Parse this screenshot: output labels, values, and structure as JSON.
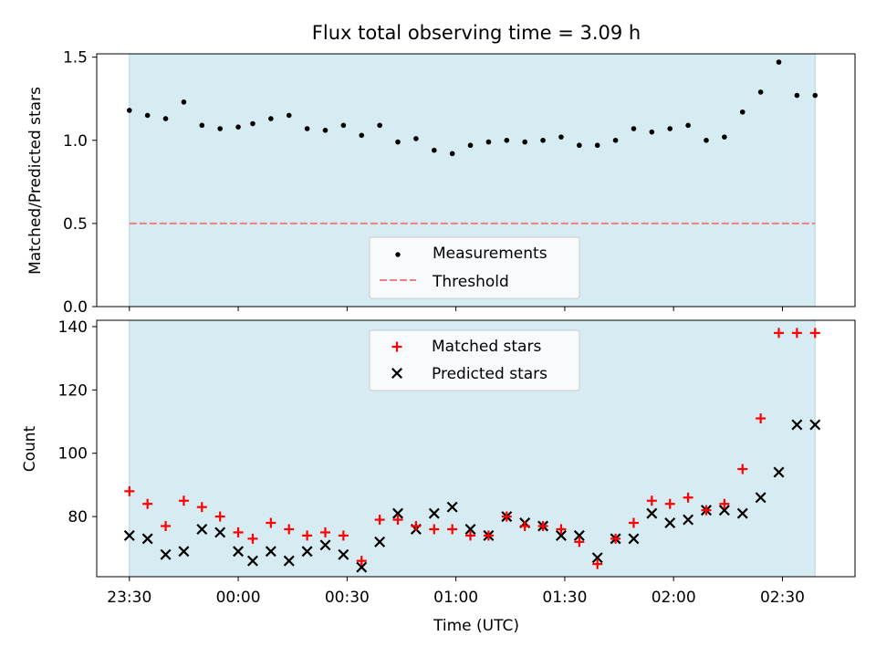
{
  "chart_data": [
    {
      "type": "scatter",
      "title": "Flux total observing time = 3.09 h",
      "xlabel": "",
      "ylabel": "Matched/Predicted stars",
      "xlim": [
        "23:21",
        "02:50"
      ],
      "ylim": [
        0,
        1.52
      ],
      "yticks": [
        0.0,
        0.5,
        1.0,
        1.5
      ],
      "ytick_labels": [
        "0.0",
        "0.5",
        "1.0",
        "1.5"
      ],
      "grid": false,
      "legend_position": "bottom-center",
      "shaded_span": [
        "23:30",
        "02:39"
      ],
      "threshold": {
        "name": "Threshold",
        "value": 0.5,
        "color": "#f07f7f",
        "style": "dashed"
      },
      "series": [
        {
          "name": "Measurements",
          "color": "#000000",
          "marker": "dot",
          "x": [
            "23:30",
            "23:35",
            "23:40",
            "23:45",
            "23:50",
            "23:55",
            "00:00",
            "00:04",
            "00:09",
            "00:14",
            "00:19",
            "00:24",
            "00:29",
            "00:34",
            "00:39",
            "00:44",
            "00:49",
            "00:54",
            "00:59",
            "01:04",
            "01:09",
            "01:14",
            "01:19",
            "01:24",
            "01:29",
            "01:34",
            "01:39",
            "01:44",
            "01:49",
            "01:54",
            "01:59",
            "02:04",
            "02:09",
            "02:14",
            "02:19",
            "02:24",
            "02:29",
            "02:34",
            "02:39"
          ],
          "y": [
            1.18,
            1.15,
            1.13,
            1.23,
            1.09,
            1.07,
            1.08,
            1.1,
            1.13,
            1.15,
            1.07,
            1.06,
            1.09,
            1.03,
            1.09,
            0.99,
            1.01,
            0.94,
            0.92,
            0.97,
            0.99,
            1.0,
            0.99,
            1.0,
            1.02,
            0.97,
            0.97,
            1.0,
            1.07,
            1.05,
            1.07,
            1.09,
            1.0,
            1.02,
            1.17,
            1.29,
            1.47,
            1.27,
            1.27
          ]
        }
      ]
    },
    {
      "type": "scatter",
      "title": "",
      "xlabel": "Time (UTC)",
      "ylabel": "Count",
      "xlim": [
        "23:21",
        "02:50"
      ],
      "ylim": [
        61,
        142
      ],
      "yticks": [
        80,
        100,
        120,
        140
      ],
      "ytick_labels": [
        "80",
        "100",
        "120",
        "140"
      ],
      "xticks": [
        "23:30",
        "00:00",
        "00:30",
        "01:00",
        "01:30",
        "02:00",
        "02:30"
      ],
      "xtick_labels": [
        "23:30",
        "00:00",
        "00:30",
        "01:00",
        "01:30",
        "02:00",
        "02:30"
      ],
      "grid": false,
      "legend_position": "top-center",
      "shaded_span": [
        "23:30",
        "02:39"
      ],
      "series": [
        {
          "name": "Matched stars",
          "color": "#ff0000",
          "marker": "plus",
          "x": [
            "23:30",
            "23:35",
            "23:40",
            "23:45",
            "23:50",
            "23:55",
            "00:00",
            "00:04",
            "00:09",
            "00:14",
            "00:19",
            "00:24",
            "00:29",
            "00:34",
            "00:39",
            "00:44",
            "00:49",
            "00:54",
            "00:59",
            "01:04",
            "01:09",
            "01:14",
            "01:19",
            "01:24",
            "01:29",
            "01:34",
            "01:39",
            "01:44",
            "01:49",
            "01:54",
            "01:59",
            "02:04",
            "02:09",
            "02:14",
            "02:19",
            "02:24",
            "02:29",
            "02:34",
            "02:39"
          ],
          "y": [
            88,
            84,
            77,
            85,
            83,
            80,
            75,
            73,
            78,
            76,
            74,
            75,
            74,
            66,
            79,
            79,
            77,
            76,
            76,
            74,
            74,
            80,
            77,
            77,
            76,
            72,
            65,
            73,
            78,
            85,
            84,
            86,
            82,
            84,
            95,
            111,
            138,
            138,
            138
          ]
        },
        {
          "name": "Predicted stars",
          "color": "#000000",
          "marker": "x",
          "x": [
            "23:30",
            "23:35",
            "23:40",
            "23:45",
            "23:50",
            "23:55",
            "00:00",
            "00:04",
            "00:09",
            "00:14",
            "00:19",
            "00:24",
            "00:29",
            "00:34",
            "00:39",
            "00:44",
            "00:49",
            "00:54",
            "00:59",
            "01:04",
            "01:09",
            "01:14",
            "01:19",
            "01:24",
            "01:29",
            "01:34",
            "01:39",
            "01:44",
            "01:49",
            "01:54",
            "01:59",
            "02:04",
            "02:09",
            "02:14",
            "02:19",
            "02:24",
            "02:29",
            "02:34",
            "02:39"
          ],
          "y": [
            74,
            73,
            68,
            69,
            76,
            75,
            69,
            66,
            69,
            66,
            69,
            71,
            68,
            64,
            72,
            81,
            76,
            81,
            83,
            76,
            74,
            80,
            78,
            77,
            74,
            74,
            67,
            73,
            73,
            81,
            78,
            79,
            82,
            82,
            81,
            86,
            94,
            109,
            109
          ]
        }
      ]
    }
  ]
}
